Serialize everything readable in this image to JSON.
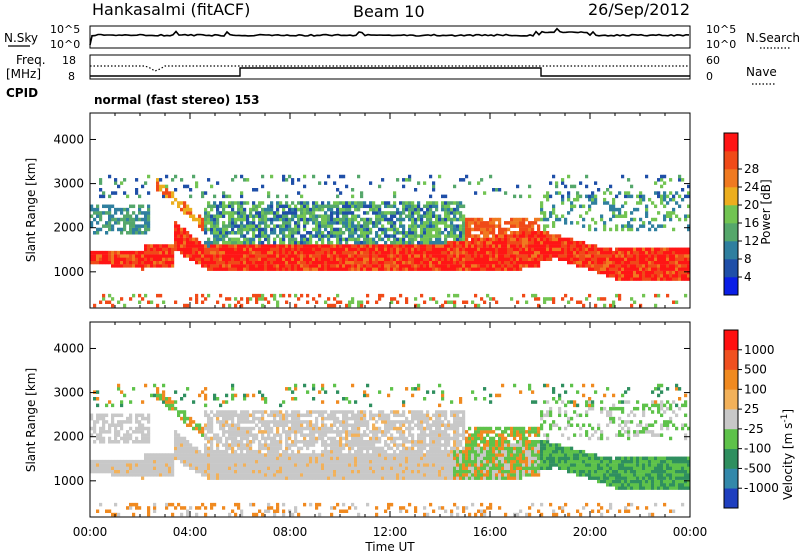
{
  "header": {
    "station": "Hankasalmi (fitACF)",
    "beam": "Beam 10",
    "date": "26/Sep/2012"
  },
  "noise_panel": {
    "left_label": "N.Sky",
    "right_label": "N.Search",
    "left_ticks": [
      "10^5",
      "10^0"
    ],
    "right_ticks": [
      "10^5",
      "10^0"
    ]
  },
  "freq_panel": {
    "left_label_1": "Freq.",
    "left_label_2": "[MHz]",
    "left_ticks": [
      "18",
      "8"
    ],
    "right_label": "Nave",
    "right_ticks": [
      "60",
      "0"
    ]
  },
  "cpid": {
    "label": "CPID",
    "value": "normal (fast stereo) 153"
  },
  "chart_data": [
    {
      "type": "heatmap",
      "name": "power",
      "ylabel": "Slant Range [km]",
      "xlabel": "",
      "ylim": [
        180,
        4600
      ],
      "yticks": [
        "1000",
        "2000",
        "3000",
        "4000"
      ],
      "x": [
        "00:00",
        "04:00",
        "08:00",
        "12:00",
        "16:00",
        "20:00",
        "00:00"
      ],
      "colorbar": {
        "label": "Power [dB]",
        "ticks": [
          "4",
          "8",
          "12",
          "16",
          "20",
          "24",
          "28"
        ],
        "colors": [
          "#0a1ee6",
          "#1f4fa8",
          "#2f7f9f",
          "#55a76b",
          "#72c452",
          "#ecae1e",
          "#f07a20",
          "#f04a18",
          "#ff1515"
        ]
      }
    },
    {
      "type": "heatmap",
      "name": "velocity",
      "ylabel": "Slant Range [km]",
      "xlabel": "Time UT",
      "ylim": [
        180,
        4600
      ],
      "yticks": [
        "1000",
        "2000",
        "3000",
        "4000"
      ],
      "x": [
        "00:00",
        "04:00",
        "08:00",
        "12:00",
        "16:00",
        "20:00",
        "00:00"
      ],
      "colorbar": {
        "label": "Velocity",
        "unit_main": "[m s",
        "unit_sup": "-1",
        "unit_close": "]",
        "ticks": [
          "1000",
          "500",
          "100",
          "25",
          "-25",
          "-100",
          "-500",
          "-1000"
        ],
        "colors": [
          "#1f3fbf",
          "#3388aa",
          "#2f8f5f",
          "#5ec24a",
          "#c8c8c8",
          "#f2b15a",
          "#f08a20",
          "#f05020",
          "#ff1010"
        ],
        "ground_scatter": "#c8c8c8"
      }
    }
  ]
}
